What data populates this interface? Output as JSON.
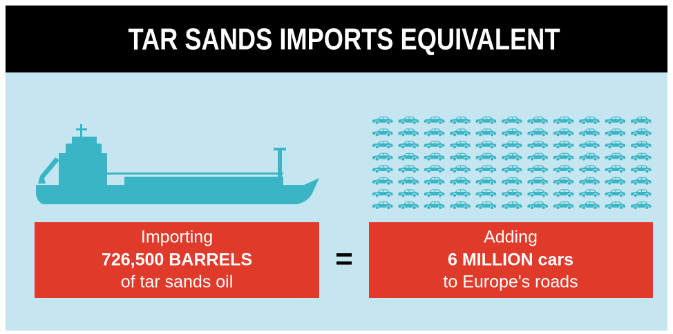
{
  "header": {
    "title": "TAR SANDS IMPORTS EQUIVALENT"
  },
  "left_box": {
    "lines": [
      "Importing",
      "726,500 BARRELS",
      "of tar sands oil"
    ]
  },
  "equals": "=",
  "right_box": {
    "lines": [
      "Adding",
      "6 MILLION cars",
      "to Europe's roads"
    ]
  }
}
